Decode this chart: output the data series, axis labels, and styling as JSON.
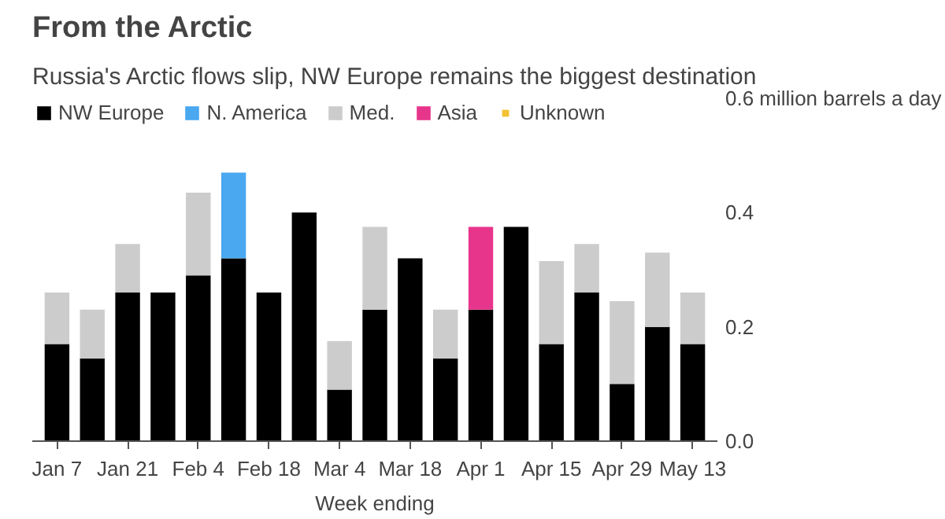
{
  "chart_data": {
    "type": "bar",
    "stacked": true,
    "title": "From the Arctic",
    "subtitle": "Russia's Arctic flows slip, NW Europe remains the biggest destination",
    "xlabel": "Week ending",
    "categories": [
      "Jan 7",
      null,
      "Jan 21",
      null,
      "Feb 4",
      null,
      "Feb 18",
      null,
      "Mar 4",
      null,
      "Mar 18",
      null,
      "Apr 1",
      null,
      "Apr 15",
      null,
      "Apr 29",
      null,
      "May 13"
    ],
    "series": [
      {
        "name": "NW Europe",
        "color": "#000000",
        "values": [
          0.17,
          0.145,
          0.26,
          0.26,
          0.29,
          0.32,
          0.26,
          0.4,
          0.09,
          0.23,
          0.32,
          0.145,
          0.23,
          0.375,
          0.17,
          0.26,
          0.1,
          0.2,
          0.17
        ]
      },
      {
        "name": "N. America",
        "color": "#4aa8f0",
        "values": [
          null,
          null,
          null,
          null,
          null,
          0.15,
          null,
          null,
          null,
          null,
          null,
          null,
          null,
          null,
          null,
          null,
          null,
          null,
          null
        ]
      },
      {
        "name": "Med.",
        "color": "#cccccc",
        "values": [
          0.09,
          0.085,
          0.085,
          null,
          0.145,
          null,
          null,
          null,
          0.085,
          0.145,
          null,
          0.085,
          null,
          null,
          0.145,
          0.085,
          0.145,
          0.13,
          0.09
        ]
      },
      {
        "name": "Asia",
        "color": "#e8358c",
        "values": [
          null,
          null,
          null,
          null,
          null,
          null,
          null,
          null,
          null,
          null,
          null,
          null,
          0.145,
          null,
          null,
          null,
          null,
          null,
          null
        ]
      },
      {
        "name": "Unknown",
        "color": "#f2c232",
        "values": [
          null,
          null,
          null,
          null,
          null,
          null,
          null,
          null,
          null,
          null,
          null,
          null,
          null,
          null,
          null,
          null,
          null,
          null,
          null
        ]
      }
    ],
    "ylim": [
      0,
      0.6
    ],
    "yticks": [
      {
        "value": 0,
        "label": "0.0"
      },
      {
        "value": 0.2,
        "label": "0.2"
      },
      {
        "value": 0.4,
        "label": "0.4"
      },
      {
        "value": 0.6,
        "label": "0.6 million barrels a day"
      }
    ],
    "grid": false,
    "legend": "top left"
  }
}
